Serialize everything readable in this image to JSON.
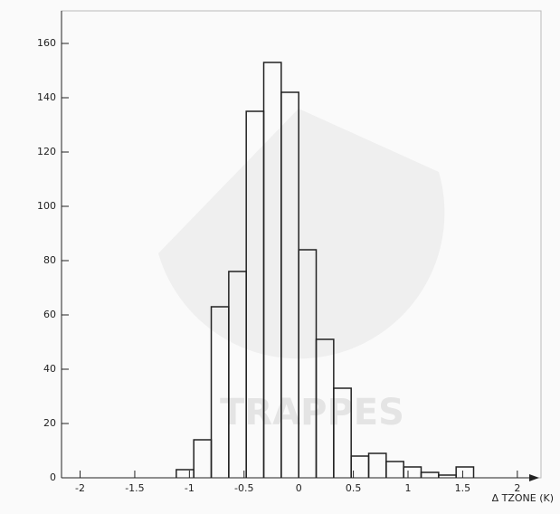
{
  "chart_data": {
    "type": "histogram",
    "xlabel": "Δ TZONE (K)",
    "watermark": "TRAPPES",
    "bins": [
      -1.12,
      -0.96,
      -0.8,
      -0.64,
      -0.48,
      -0.32,
      -0.16,
      0,
      0.16,
      0.32,
      0.48,
      0.64,
      0.8,
      0.96,
      1.12,
      1.28,
      1.44,
      1.6
    ],
    "values": [
      3,
      14,
      63,
      76,
      135,
      153,
      142,
      84,
      51,
      33,
      8,
      9,
      6,
      4,
      2,
      1,
      4
    ],
    "color": "#222222",
    "xlim": [
      -2.17,
      2.2
    ],
    "xticks": [
      -2,
      -1.5,
      -1,
      -0.5,
      0,
      0.5,
      1,
      1.5,
      2
    ],
    "ylim": [
      0,
      172
    ],
    "yticks": [
      0,
      20,
      40,
      60,
      80,
      100,
      120,
      140,
      160
    ]
  }
}
